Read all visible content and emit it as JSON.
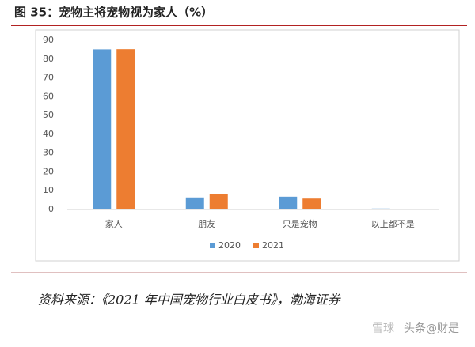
{
  "chart_data": {
    "type": "bar",
    "title": "图 35：宠物主将宠物视为家人（%）",
    "categories": [
      "家人",
      "朋友",
      "只是宠物",
      "以上都不是"
    ],
    "series": [
      {
        "name": "2020",
        "color": "#5b9bd5",
        "values": [
          85.2,
          6.4,
          6.8,
          0.5
        ]
      },
      {
        "name": "2021",
        "color": "#ed7d31",
        "values": [
          85.3,
          8.4,
          5.8,
          0.4
        ]
      }
    ],
    "ylim": [
      0,
      90
    ],
    "yticks": [
      0,
      10,
      20,
      30,
      40,
      50,
      60,
      70,
      80,
      90
    ],
    "grid": false,
    "legend": "bottom",
    "source": "资料来源：《2021 年中国宠物行业白皮书》，渤海证券",
    "watermark": [
      "雪球",
      "头条@财是"
    ]
  }
}
